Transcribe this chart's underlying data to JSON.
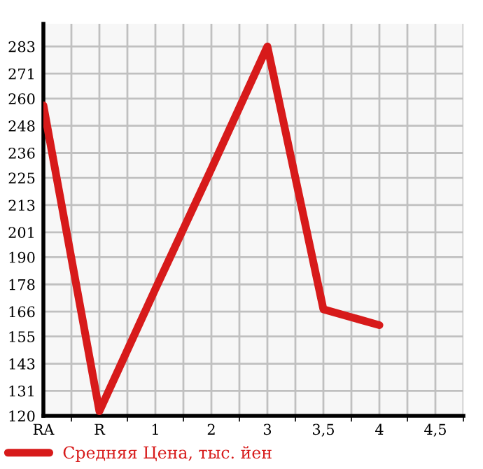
{
  "chart_data": {
    "type": "line",
    "categories": [
      "RA",
      "R",
      "1",
      "2",
      "3",
      "3,5",
      "4",
      "4,5"
    ],
    "series": [
      {
        "name": "Средняя Цена, тыс. йен",
        "color": "#d71a1a",
        "values": [
          257,
          122,
          176,
          229,
          283,
          167,
          160,
          null
        ]
      }
    ],
    "ylim": [
      120,
      293
    ],
    "yticks": [
      120,
      131,
      143,
      155,
      166,
      178,
      190,
      201,
      213,
      225,
      236,
      248,
      260,
      271,
      283
    ],
    "grid": true,
    "legend": "bottom left",
    "marker": "none",
    "line_style": "solid"
  }
}
